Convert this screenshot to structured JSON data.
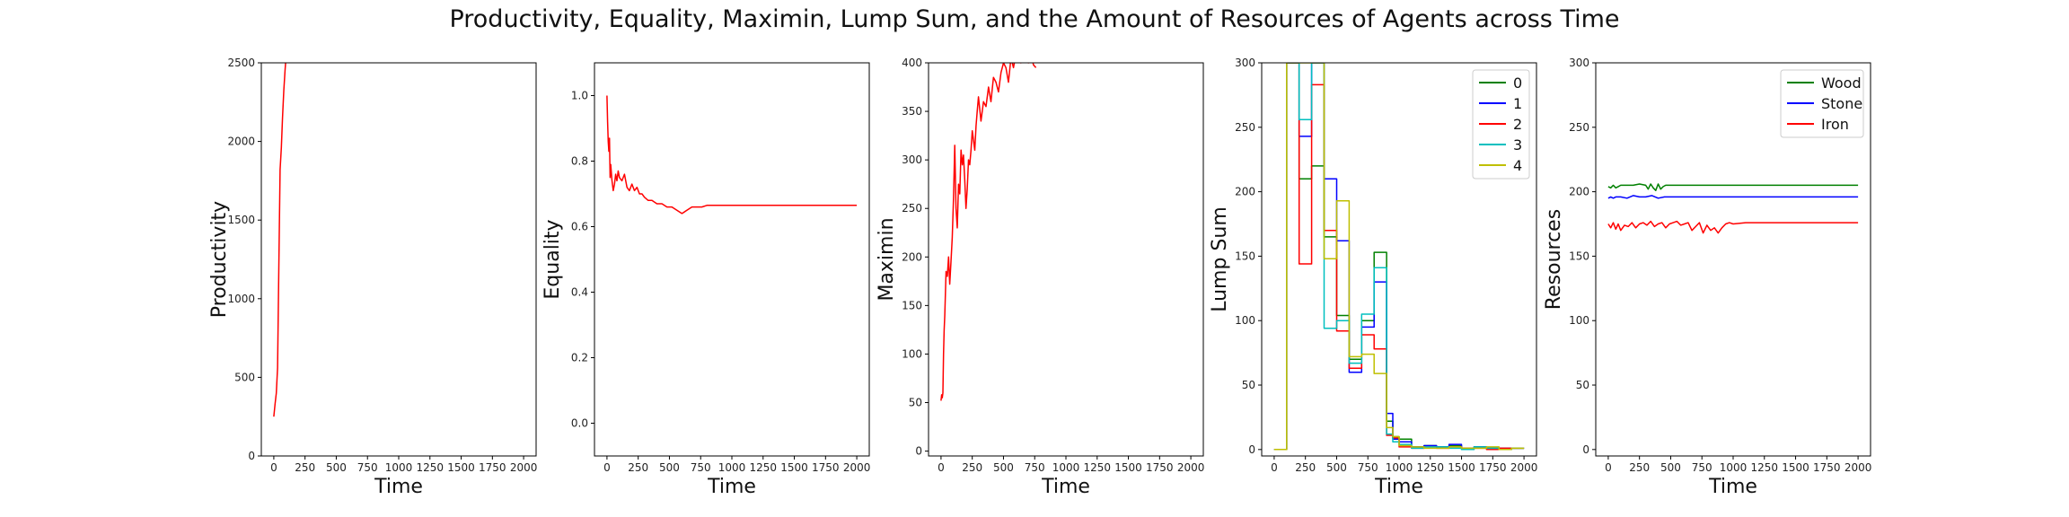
{
  "figure": {
    "title": "Productivity, Equality, Maximin, Lump Sum, and the Amount of Resources of Agents across Time"
  },
  "chart_data": [
    {
      "type": "line",
      "xlabel": "Time",
      "ylabel": "Productivity",
      "xlim": [
        -100,
        2100
      ],
      "ylim": [
        0,
        2500
      ],
      "xticks": [
        0,
        250,
        500,
        750,
        1000,
        1250,
        1500,
        1750,
        2000
      ],
      "yticks": [
        0,
        500,
        1000,
        1500,
        2000,
        2500
      ],
      "grid": false,
      "series": [
        {
          "color": "#ff0000",
          "x": [
            0,
            10,
            20,
            30,
            40,
            50,
            60,
            70,
            80,
            90,
            100
          ],
          "y": [
            250,
            330,
            400,
            560,
            1200,
            1820,
            1960,
            2150,
            2320,
            2450,
            2560
          ]
        }
      ]
    },
    {
      "type": "line",
      "xlabel": "Time",
      "ylabel": "Equality",
      "xlim": [
        -100,
        2100
      ],
      "ylim": [
        -0.1,
        1.1
      ],
      "xticks": [
        0,
        250,
        500,
        750,
        1000,
        1250,
        1500,
        1750,
        2000
      ],
      "yticks": [
        0.0,
        0.2,
        0.4,
        0.6,
        0.8,
        1.0
      ],
      "grid": false,
      "series": [
        {
          "color": "#ff0000",
          "x": [
            0,
            5,
            10,
            15,
            20,
            25,
            30,
            40,
            50,
            60,
            70,
            80,
            90,
            100,
            120,
            140,
            160,
            180,
            200,
            220,
            240,
            260,
            280,
            300,
            330,
            360,
            400,
            440,
            480,
            520,
            560,
            600,
            640,
            680,
            720,
            760,
            800,
            900,
            1000,
            1200,
            1500,
            1800,
            2000
          ],
          "y": [
            1.0,
            0.92,
            0.86,
            0.83,
            0.87,
            0.75,
            0.79,
            0.74,
            0.71,
            0.73,
            0.76,
            0.74,
            0.77,
            0.75,
            0.74,
            0.76,
            0.72,
            0.71,
            0.73,
            0.71,
            0.72,
            0.7,
            0.7,
            0.69,
            0.68,
            0.68,
            0.67,
            0.67,
            0.66,
            0.66,
            0.65,
            0.64,
            0.65,
            0.66,
            0.66,
            0.66,
            0.665,
            0.665,
            0.665,
            0.665,
            0.665,
            0.665,
            0.665
          ]
        }
      ]
    },
    {
      "type": "line",
      "xlabel": "Time",
      "ylabel": "Maximin",
      "xlim": [
        -100,
        2100
      ],
      "ylim": [
        -5,
        400
      ],
      "xticks": [
        0,
        250,
        500,
        750,
        1000,
        1250,
        1500,
        1750,
        2000
      ],
      "yticks": [
        0,
        50,
        100,
        150,
        200,
        250,
        300,
        350,
        400
      ],
      "grid": false,
      "series": [
        {
          "color": "#ff0000",
          "x": [
            0,
            5,
            10,
            15,
            20,
            25,
            30,
            40,
            50,
            60,
            70,
            80,
            90,
            100,
            110,
            120,
            130,
            140,
            150,
            160,
            170,
            180,
            190,
            200,
            210,
            220,
            230,
            240,
            250,
            260,
            270,
            280,
            290,
            300,
            320,
            340,
            360,
            380,
            400,
            420,
            440,
            460,
            480,
            500,
            520,
            540,
            560,
            580,
            600,
            620,
            640,
            660,
            680,
            700,
            720,
            740,
            760
          ],
          "y": [
            52,
            58,
            55,
            60,
            100,
            125,
            140,
            185,
            180,
            200,
            172,
            195,
            220,
            260,
            315,
            250,
            230,
            275,
            265,
            310,
            295,
            305,
            280,
            250,
            270,
            300,
            295,
            310,
            330,
            320,
            310,
            335,
            350,
            365,
            340,
            360,
            355,
            375,
            360,
            385,
            380,
            370,
            390,
            400,
            395,
            380,
            405,
            395,
            410,
            405,
            400,
            410,
            405,
            400,
            410,
            398,
            395
          ]
        }
      ]
    },
    {
      "type": "line",
      "xlabel": "Time",
      "ylabel": "Lump Sum",
      "xlim": [
        -100,
        2100
      ],
      "ylim": [
        -5,
        300
      ],
      "xticks": [
        0,
        250,
        500,
        750,
        1000,
        1250,
        1500,
        1750,
        2000
      ],
      "yticks": [
        0,
        50,
        100,
        150,
        200,
        250,
        300
      ],
      "grid": false,
      "legend": {
        "placement": "top-right",
        "entries": [
          "0",
          "1",
          "2",
          "3",
          "4"
        ]
      },
      "series": [
        {
          "name": "0",
          "color": "#008000",
          "x": [
            0,
            100,
            100,
            200,
            200,
            300,
            300,
            400,
            400,
            500,
            500,
            600,
            600,
            700,
            700,
            800,
            800,
            900,
            900,
            950,
            950,
            1000,
            1000,
            1100,
            1100,
            1200,
            1200,
            1300,
            1300,
            1400,
            1400,
            1500,
            1500,
            1600,
            1600,
            1700,
            1700,
            1800,
            1800,
            1900,
            1900,
            2000
          ],
          "y": [
            0,
            0,
            300,
            300,
            210,
            210,
            220,
            220,
            165,
            165,
            104,
            104,
            70,
            70,
            100,
            100,
            153,
            153,
            22,
            22,
            10,
            10,
            8,
            8,
            2,
            2,
            3,
            3,
            2,
            2,
            3,
            3,
            1,
            1,
            2,
            2,
            1,
            1,
            1,
            1,
            1,
            1
          ]
        },
        {
          "name": "1",
          "color": "#0000ff",
          "x": [
            0,
            100,
            100,
            200,
            200,
            300,
            300,
            400,
            400,
            500,
            500,
            600,
            600,
            700,
            700,
            800,
            800,
            900,
            900,
            950,
            950,
            1000,
            1000,
            1100,
            1100,
            1200,
            1200,
            1300,
            1300,
            1400,
            1400,
            1500,
            1500,
            1600,
            1600,
            1700,
            1700,
            1800,
            1800,
            1900,
            1900,
            2000
          ],
          "y": [
            0,
            0,
            300,
            300,
            243,
            243,
            300,
            300,
            210,
            210,
            162,
            162,
            60,
            60,
            95,
            95,
            130,
            130,
            28,
            28,
            8,
            8,
            6,
            6,
            2,
            2,
            3,
            3,
            2,
            2,
            4,
            4,
            1,
            1,
            2,
            2,
            1,
            1,
            1,
            1,
            1,
            1
          ]
        },
        {
          "name": "2",
          "color": "#ff0000",
          "x": [
            0,
            100,
            100,
            200,
            200,
            300,
            300,
            400,
            400,
            500,
            500,
            600,
            600,
            700,
            700,
            800,
            800,
            900,
            900,
            950,
            950,
            1000,
            1000,
            1100,
            1100,
            1200,
            1200,
            1300,
            1300,
            1400,
            1400,
            1500,
            1500,
            1600,
            1600,
            1700,
            1700,
            1800,
            1800,
            1900,
            1900,
            2000
          ],
          "y": [
            0,
            0,
            300,
            300,
            144,
            144,
            283,
            283,
            170,
            170,
            92,
            92,
            63,
            63,
            89,
            89,
            78,
            78,
            11,
            11,
            9,
            9,
            2,
            2,
            1,
            1,
            2,
            2,
            1,
            1,
            2,
            2,
            1,
            1,
            1,
            1,
            0,
            0,
            1,
            1,
            1,
            1
          ]
        },
        {
          "name": "3",
          "color": "#00bfbf",
          "x": [
            0,
            100,
            100,
            200,
            200,
            300,
            300,
            400,
            400,
            500,
            500,
            600,
            600,
            700,
            700,
            800,
            800,
            900,
            900,
            950,
            950,
            1000,
            1000,
            1100,
            1100,
            1200,
            1200,
            1300,
            1300,
            1400,
            1400,
            1500,
            1500,
            1600,
            1600,
            1700,
            1700,
            1800,
            1800,
            1900,
            1900,
            2000
          ],
          "y": [
            0,
            0,
            300,
            300,
            256,
            256,
            300,
            300,
            94,
            94,
            100,
            100,
            67,
            67,
            105,
            105,
            141,
            141,
            12,
            12,
            6,
            6,
            4,
            4,
            1,
            1,
            2,
            2,
            2,
            2,
            1,
            1,
            0,
            0,
            2,
            2,
            1,
            1,
            0,
            0,
            1,
            1
          ]
        },
        {
          "name": "4",
          "color": "#bfbf00",
          "x": [
            0,
            100,
            100,
            200,
            200,
            300,
            300,
            400,
            400,
            500,
            500,
            600,
            600,
            700,
            700,
            800,
            800,
            900,
            900,
            950,
            950,
            1000,
            1000,
            1100,
            1100,
            1200,
            1200,
            1300,
            1300,
            1400,
            1400,
            1500,
            1500,
            1600,
            1600,
            1700,
            1700,
            1800,
            1800,
            1900,
            1900,
            2000
          ],
          "y": [
            0,
            0,
            300,
            300,
            300,
            300,
            300,
            300,
            148,
            148,
            193,
            193,
            72,
            72,
            74,
            74,
            59,
            59,
            17,
            17,
            10,
            10,
            3,
            3,
            2,
            2,
            1,
            1,
            1,
            1,
            2,
            2,
            1,
            1,
            1,
            1,
            2,
            2,
            0,
            0,
            1,
            1
          ]
        }
      ]
    },
    {
      "type": "line",
      "xlabel": "Time",
      "ylabel": "Resources",
      "xlim": [
        -100,
        2100
      ],
      "ylim": [
        -5,
        300
      ],
      "xticks": [
        0,
        250,
        500,
        750,
        1000,
        1250,
        1500,
        1750,
        2000
      ],
      "yticks": [
        0,
        50,
        100,
        150,
        200,
        250,
        300
      ],
      "grid": false,
      "legend": {
        "placement": "top-right",
        "entries": [
          "Wood",
          "Stone",
          "Iron"
        ]
      },
      "series": [
        {
          "name": "Wood",
          "color": "#008000",
          "x": [
            0,
            20,
            40,
            60,
            80,
            100,
            150,
            200,
            250,
            300,
            320,
            340,
            360,
            380,
            400,
            420,
            440,
            460,
            480,
            500,
            550,
            600,
            700,
            800,
            900,
            1000,
            1500,
            2000
          ],
          "y": [
            204,
            203,
            205,
            203,
            204,
            205,
            205,
            205,
            206,
            205,
            202,
            206,
            203,
            201,
            206,
            202,
            204,
            205,
            205,
            205,
            205,
            205,
            205,
            205,
            205,
            205,
            205,
            205
          ]
        },
        {
          "name": "Stone",
          "color": "#0000ff",
          "x": [
            0,
            20,
            40,
            60,
            80,
            100,
            150,
            200,
            250,
            300,
            350,
            400,
            450,
            500,
            600,
            800,
            1000,
            1500,
            2000
          ],
          "y": [
            195,
            196,
            195,
            196,
            196,
            196,
            195,
            197,
            196,
            196,
            197,
            195,
            196,
            196,
            196,
            196,
            196,
            196,
            196
          ]
        },
        {
          "name": "Iron",
          "color": "#ff0000",
          "x": [
            0,
            20,
            40,
            60,
            80,
            100,
            130,
            160,
            190,
            220,
            250,
            280,
            310,
            340,
            370,
            400,
            430,
            460,
            490,
            520,
            550,
            580,
            610,
            640,
            670,
            700,
            730,
            760,
            790,
            820,
            850,
            880,
            910,
            940,
            970,
            1000,
            1100,
            1200,
            1500,
            1800,
            2000
          ],
          "y": [
            175,
            172,
            176,
            171,
            175,
            170,
            174,
            173,
            176,
            172,
            175,
            176,
            174,
            177,
            173,
            175,
            176,
            172,
            175,
            176,
            177,
            174,
            175,
            176,
            170,
            173,
            176,
            168,
            174,
            170,
            172,
            168,
            172,
            175,
            176,
            175,
            176,
            176,
            176,
            176,
            176
          ]
        }
      ]
    }
  ]
}
